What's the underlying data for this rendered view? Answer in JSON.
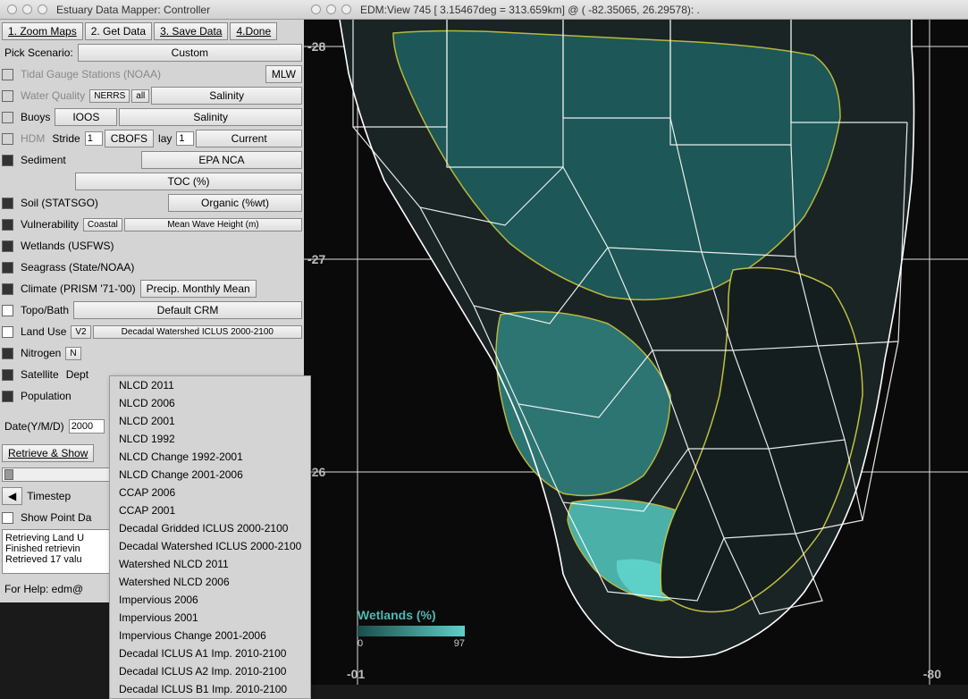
{
  "controller": {
    "title": "Estuary Data Mapper: Controller",
    "toolbar": {
      "zoom": "1. Zoom Maps",
      "getdata": "2. Get Data",
      "savedata": "3. Save Data",
      "done": "4.Done"
    },
    "scenario": {
      "label": "Pick Scenario:",
      "value": "Custom"
    },
    "tidal": {
      "label": "Tidal Gauge Stations (NOAA)",
      "opt": "MLW"
    },
    "water": {
      "label": "Water Quality",
      "b1": "NERRS",
      "b2": "all",
      "b3": "Salinity"
    },
    "buoys": {
      "label": "Buoys",
      "b1": "IOOS",
      "b2": "Salinity"
    },
    "hdm": {
      "label": "HDM",
      "stride_label": "Stride",
      "stride_val": "1",
      "cbofs": "CBOFS",
      "lay_label": "lay",
      "lay_val": "1",
      "current": "Current"
    },
    "sediment": {
      "label": "Sediment",
      "b1": "EPA NCA",
      "b2": "TOC (%)"
    },
    "soil": {
      "label": "Soil (STATSGO)",
      "b1": "Organic (%wt)"
    },
    "vuln": {
      "label": "Vulnerability",
      "b1": "Coastal",
      "b2": "Mean Wave Height (m)"
    },
    "wetlands": {
      "label": "Wetlands (USFWS)"
    },
    "seagrass": {
      "label": "Seagrass (State/NOAA)"
    },
    "climate": {
      "label": "Climate (PRISM '71-'00)",
      "b1": "Precip. Monthly Mean"
    },
    "topo": {
      "label": "Topo/Bath",
      "b1": "Default CRM"
    },
    "landuse": {
      "label": "Land Use",
      "b1": "V2",
      "b2": "Decadal Watershed ICLUS 2000-2100"
    },
    "nitrogen": {
      "label": "Nitrogen",
      "b1": "N"
    },
    "satellite": {
      "label": "Satellite",
      "b1": "Dept"
    },
    "population": {
      "label": "Population"
    },
    "date": {
      "label": "Date(Y/M/D)",
      "val": "2000"
    },
    "retrieve": "Retrieve & Show",
    "timestep": {
      "back": "◀",
      "label": "Timestep"
    },
    "showpoint": "Show Point Da",
    "log": "Retrieving Land U\nFinished retrievin\nRetrieved 17 valu",
    "help": "For Help: edm@"
  },
  "dropdown_items": [
    "NLCD 2011",
    "NLCD 2006",
    "NLCD 2001",
    "NLCD 1992",
    "NLCD Change 1992-2001",
    "NLCD Change 2001-2006",
    "CCAP 2006",
    "CCAP 2001",
    "Decadal Gridded ICLUS 2000-2100",
    "Decadal Watershed ICLUS 2000-2100",
    "Watershed NLCD 2011",
    "Watershed NLCD 2006",
    "Impervious 2006",
    "Impervious 2001",
    "Impervious Change 2001-2006",
    "Decadal ICLUS A1 Imp. 2010-2100",
    "Decadal ICLUS A2 Imp. 2010-2100",
    "Decadal ICLUS B1 Imp. 2010-2100"
  ],
  "viewer": {
    "title": "EDM:View 745 [ 3.15467deg =  313.659km] @ ( -82.35065, 26.29578):          .",
    "axis": {
      "lat1": "-28",
      "lat2": "-27",
      "lat3": "-26",
      "lon1": "-01",
      "lon2": "-80"
    },
    "legend": {
      "title": "Wetlands (%)",
      "min": "0",
      "max": "97"
    },
    "colors": {
      "bg": "#0a0a0a",
      "land_dark": "#1a2626",
      "teal_dark": "#1e5a5a",
      "teal_mid": "#2d7a78",
      "teal_light": "#4db8b0",
      "teal_bright": "#5dd0c8",
      "border_white": "#ffffff",
      "border_yellow": "#c0c040"
    }
  }
}
